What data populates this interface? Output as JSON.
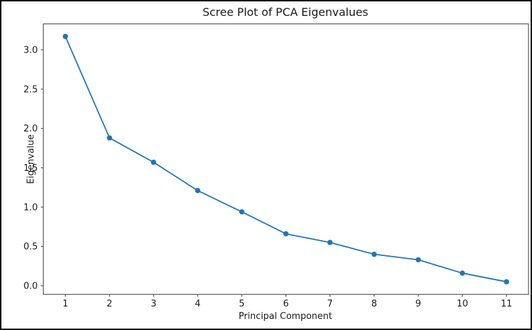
{
  "figure": {
    "background": "#ffffff",
    "outer_border_color": "#000000"
  },
  "chart_data": {
    "type": "line",
    "title": "Scree Plot of PCA Eigenvalues",
    "xlabel": "Principal Component",
    "ylabel": "Eigenvalue",
    "x": [
      1,
      2,
      3,
      4,
      5,
      6,
      7,
      8,
      9,
      10,
      11
    ],
    "series": [
      {
        "name": "Eigenvalue",
        "values": [
          3.17,
          1.88,
          1.57,
          1.21,
          0.94,
          0.66,
          0.55,
          0.4,
          0.33,
          0.16,
          0.05
        ]
      }
    ],
    "x_ticks": [
      "1",
      "2",
      "3",
      "4",
      "5",
      "6",
      "7",
      "8",
      "9",
      "10",
      "11"
    ],
    "y_ticks": [
      "0.0",
      "0.5",
      "1.0",
      "1.5",
      "2.0",
      "2.5",
      "3.0"
    ],
    "xlim": [
      0.5,
      11.5
    ],
    "ylim": [
      -0.11,
      3.33
    ],
    "grid": false,
    "legend": null,
    "marker": "o",
    "line_color": "#1f77b4",
    "marker_color": "#1f77b4",
    "text_color": "#1a1a1a",
    "spine_color": "#5a5a5a"
  }
}
